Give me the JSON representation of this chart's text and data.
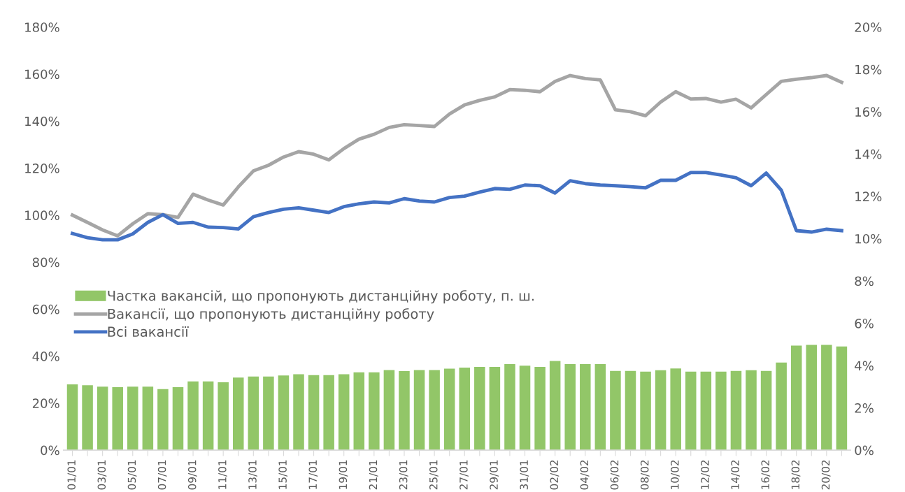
{
  "chart_data": {
    "type": "bar",
    "categories": [
      "01/01",
      null,
      "03/01",
      null,
      "05/01",
      null,
      "07/01",
      null,
      "09/01",
      null,
      "11/01",
      null,
      "13/01",
      null,
      "15/01",
      null,
      "17/01",
      null,
      "19/01",
      null,
      "21/01",
      null,
      "23/01",
      null,
      "25/01",
      null,
      "27/01",
      null,
      "29/01",
      null,
      "31/01",
      null,
      "02/02",
      null,
      "04/02",
      null,
      "06/02",
      null,
      "08/02",
      null,
      "10/02",
      null,
      "12/02",
      null,
      "14/02",
      null,
      "16/02",
      null,
      "18/02",
      null,
      "20/02",
      null
    ],
    "series": [
      {
        "name": "Частка вакансій, що пропонують дистанційну роботу, п. ш.",
        "axis": "y2",
        "color": "#92c668",
        "values": [
          3.11,
          3.07,
          3.0,
          2.98,
          3.0,
          3.0,
          2.89,
          2.98,
          3.25,
          3.25,
          3.21,
          3.43,
          3.48,
          3.48,
          3.53,
          3.59,
          3.55,
          3.55,
          3.59,
          3.68,
          3.68,
          3.79,
          3.74,
          3.79,
          3.79,
          3.85,
          3.9,
          3.94,
          3.94,
          4.07,
          3.99,
          3.94,
          4.22,
          4.07,
          4.07,
          4.07,
          3.75,
          3.75,
          3.71,
          3.78,
          3.86,
          3.71,
          3.71,
          3.71,
          3.75,
          3.78,
          3.75,
          4.14,
          4.94,
          4.98,
          4.98,
          4.9
        ]
      },
      {
        "name": "Вакансії, що пропонують дистанційну роботу",
        "type": "line",
        "color": "#a5a5a5",
        "values": [
          100,
          96.9,
          93.7,
          91.2,
          96.3,
          100.6,
          100.2,
          99,
          108.9,
          106.4,
          104.3,
          112,
          118.8,
          121.2,
          124.7,
          127,
          125.9,
          123.5,
          128.3,
          132.3,
          134.4,
          137.3,
          138.5,
          138.1,
          137.7,
          143,
          146.9,
          148.8,
          150.3,
          153.4,
          153.1,
          152.5,
          156.9,
          159.4,
          158.1,
          157.5,
          144.8,
          144,
          142.3,
          148.1,
          152.5,
          149.4,
          149.6,
          148.1,
          149.3,
          145.6,
          151.3,
          156.9,
          157.8,
          158.5,
          159.4,
          156.5
        ]
      },
      {
        "name": "Всі вакансії",
        "type": "line",
        "color": "#4472c4",
        "values": [
          92.2,
          90.4,
          89.5,
          89.5,
          92,
          96.9,
          100.2,
          96.5,
          96.9,
          94.9,
          94.7,
          94.1,
          99.3,
          101.1,
          102.5,
          103.1,
          102.1,
          101.1,
          103.6,
          104.8,
          105.6,
          105.2,
          107,
          106,
          105.6,
          107.5,
          108.1,
          109.8,
          111.3,
          111,
          112.8,
          112.5,
          109.4,
          114.6,
          113.4,
          112.8,
          112.5,
          112.1,
          111.6,
          114.8,
          114.8,
          118.1,
          118.1,
          117.1,
          115.9,
          112.5,
          117.9,
          110.6,
          93.4,
          92.8,
          94,
          93.4
        ]
      }
    ],
    "ylim": [
      0,
      180
    ],
    "yticks": [
      {
        "value": 0,
        "label": "0%"
      },
      {
        "value": 20,
        "label": "20%"
      },
      {
        "value": 40,
        "label": "40%"
      },
      {
        "value": 60,
        "label": "60%"
      },
      {
        "value": 80,
        "label": "80%"
      },
      {
        "value": 100,
        "label": "100%"
      },
      {
        "value": 120,
        "label": "120%"
      },
      {
        "value": 140,
        "label": "140%"
      },
      {
        "value": 160,
        "label": "160%"
      },
      {
        "value": 180,
        "label": "180%"
      }
    ],
    "y2lim": [
      0,
      20
    ],
    "y2ticks": [
      {
        "value": 0,
        "label": "0%"
      },
      {
        "value": 2,
        "label": "2%"
      },
      {
        "value": 4,
        "label": "4%"
      },
      {
        "value": 6,
        "label": "6%"
      },
      {
        "value": 8,
        "label": "8%"
      },
      {
        "value": 10,
        "label": "10%"
      },
      {
        "value": 12,
        "label": "12%"
      },
      {
        "value": 14,
        "label": "14%"
      },
      {
        "value": 16,
        "label": "16%"
      },
      {
        "value": 18,
        "label": "18%"
      },
      {
        "value": 20,
        "label": "20%"
      }
    ],
    "grid": false,
    "legend": "left"
  }
}
